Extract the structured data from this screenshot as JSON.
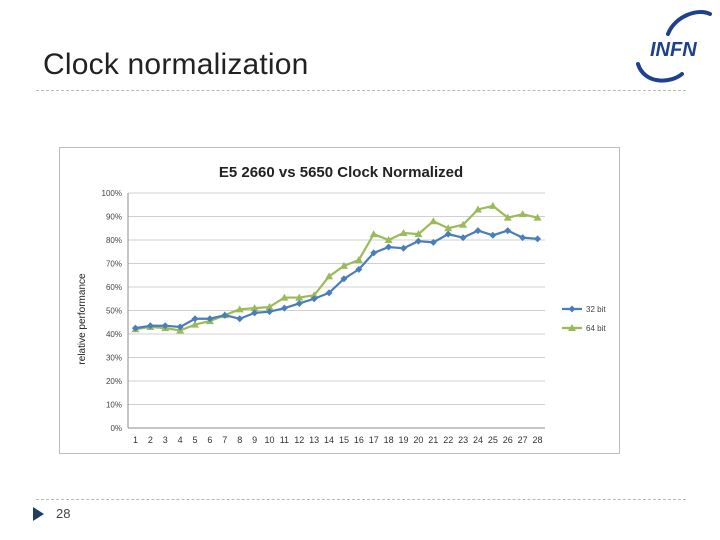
{
  "slide": {
    "title": "Clock normalization",
    "page_number": "28",
    "logo_text": "INFN"
  },
  "chart_data": {
    "type": "line",
    "title": "E5 2660 vs 5650 Clock Normalized",
    "xlabel": "",
    "ylabel": "relative performance",
    "categories": [
      "1",
      "2",
      "3",
      "4",
      "5",
      "6",
      "7",
      "8",
      "9",
      "10",
      "11",
      "12",
      "13",
      "14",
      "15",
      "16",
      "17",
      "18",
      "19",
      "20",
      "21",
      "22",
      "23",
      "24",
      "25",
      "26",
      "27",
      "28"
    ],
    "y_ticks": [
      "0%",
      "10%",
      "20%",
      "30%",
      "40%",
      "50%",
      "60%",
      "70%",
      "80%",
      "90%",
      "100%"
    ],
    "ylim": [
      0,
      100
    ],
    "grid": true,
    "legend_position": "right",
    "series": [
      {
        "name": "32 bit",
        "color": "#4a7ebb",
        "marker": "diamond",
        "values": [
          42.5,
          43.5,
          43.5,
          43,
          46.5,
          46.5,
          48,
          46.5,
          49,
          49.5,
          51,
          53,
          55,
          57.5,
          63.5,
          67.5,
          74.5,
          77,
          76.5,
          79.5,
          79,
          82.5,
          81,
          84,
          82,
          84,
          81,
          80.5
        ]
      },
      {
        "name": "64 bit",
        "color": "#9bbb59",
        "marker": "triangle",
        "values": [
          42,
          43,
          42.5,
          41.5,
          44,
          45.5,
          48,
          50.5,
          51,
          51.5,
          55.5,
          55.5,
          56.5,
          64.5,
          69,
          71.5,
          82.5,
          80,
          83,
          82.5,
          88,
          85,
          86.5,
          93,
          94.5,
          89.5,
          91,
          89.5
        ]
      }
    ]
  }
}
